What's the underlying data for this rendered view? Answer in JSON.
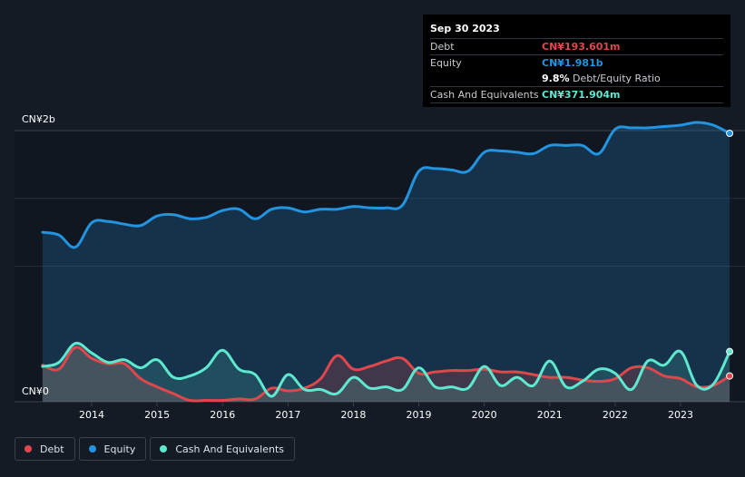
{
  "tooltip": {
    "date": "Sep 30 2023",
    "debt_label": "Debt",
    "debt_value": "CN¥193.601m",
    "equity_label": "Equity",
    "equity_value": "CN¥1.981b",
    "ratio_value": "9.8%",
    "ratio_label": "Debt/Equity Ratio",
    "cash_label": "Cash And Equivalents",
    "cash_value": "CN¥371.904m"
  },
  "legend": {
    "debt": "Debt",
    "equity": "Equity",
    "cash": "Cash And Equivalents"
  },
  "colors": {
    "debt": "#e0474c",
    "equity": "#2394df",
    "cash": "#5ee8cf",
    "background": "#151b25"
  },
  "chart_data": {
    "type": "line",
    "title": "",
    "xlabel": "",
    "ylabel": "",
    "ylim": [
      0,
      2.0
    ],
    "y_unit": "CN¥ billions",
    "y_tick_labels": [
      "CN¥0",
      "CN¥2b"
    ],
    "x_tick_labels": [
      "2014",
      "2015",
      "2016",
      "2017",
      "2018",
      "2019",
      "2020",
      "2021",
      "2022",
      "2023"
    ],
    "x_range": [
      2013.25,
      2023.75
    ],
    "grid": true,
    "legend_placement": "bottom-left",
    "series": [
      {
        "name": "Equity",
        "x": [
          2013.25,
          2013.5,
          2013.75,
          2014.0,
          2014.25,
          2014.5,
          2014.75,
          2015.0,
          2015.25,
          2015.5,
          2015.75,
          2016.0,
          2016.25,
          2016.5,
          2016.75,
          2017.0,
          2017.25,
          2017.5,
          2017.75,
          2018.0,
          2018.25,
          2018.5,
          2018.75,
          2019.0,
          2019.25,
          2019.5,
          2019.75,
          2020.0,
          2020.25,
          2020.5,
          2020.75,
          2021.0,
          2021.25,
          2021.5,
          2021.75,
          2022.0,
          2022.25,
          2022.5,
          2022.75,
          2023.0,
          2023.25,
          2023.5,
          2023.75
        ],
        "values": [
          1.25,
          1.23,
          1.14,
          1.32,
          1.33,
          1.31,
          1.3,
          1.37,
          1.38,
          1.35,
          1.36,
          1.41,
          1.42,
          1.35,
          1.42,
          1.43,
          1.4,
          1.42,
          1.42,
          1.44,
          1.43,
          1.43,
          1.45,
          1.7,
          1.72,
          1.71,
          1.7,
          1.84,
          1.85,
          1.84,
          1.83,
          1.89,
          1.89,
          1.89,
          1.83,
          2.01,
          2.02,
          2.02,
          2.03,
          2.04,
          2.06,
          2.04,
          1.98
        ]
      },
      {
        "name": "Debt",
        "x": [
          2013.25,
          2013.5,
          2013.75,
          2014.0,
          2014.25,
          2014.5,
          2014.75,
          2015.0,
          2015.25,
          2015.5,
          2015.75,
          2016.0,
          2016.25,
          2016.5,
          2016.75,
          2017.0,
          2017.25,
          2017.5,
          2017.75,
          2018.0,
          2018.25,
          2018.5,
          2018.75,
          2019.0,
          2019.25,
          2019.5,
          2019.75,
          2020.0,
          2020.25,
          2020.5,
          2020.75,
          2021.0,
          2021.25,
          2021.5,
          2021.75,
          2022.0,
          2022.25,
          2022.5,
          2022.75,
          2023.0,
          2023.25,
          2023.5,
          2023.75
        ],
        "values": [
          0.27,
          0.24,
          0.4,
          0.32,
          0.28,
          0.28,
          0.17,
          0.11,
          0.06,
          0.01,
          0.01,
          0.01,
          0.02,
          0.02,
          0.1,
          0.08,
          0.1,
          0.17,
          0.34,
          0.24,
          0.26,
          0.3,
          0.32,
          0.21,
          0.22,
          0.23,
          0.23,
          0.24,
          0.22,
          0.22,
          0.2,
          0.18,
          0.18,
          0.16,
          0.15,
          0.17,
          0.25,
          0.25,
          0.19,
          0.17,
          0.11,
          0.12,
          0.19
        ]
      },
      {
        "name": "Cash And Equivalents",
        "x": [
          2013.25,
          2013.5,
          2013.75,
          2014.0,
          2014.25,
          2014.5,
          2014.75,
          2015.0,
          2015.25,
          2015.5,
          2015.75,
          2016.0,
          2016.25,
          2016.5,
          2016.75,
          2017.0,
          2017.25,
          2017.5,
          2017.75,
          2018.0,
          2018.25,
          2018.5,
          2018.75,
          2019.0,
          2019.25,
          2019.5,
          2019.75,
          2020.0,
          2020.25,
          2020.5,
          2020.75,
          2021.0,
          2021.25,
          2021.5,
          2021.75,
          2022.0,
          2022.25,
          2022.5,
          2022.75,
          2023.0,
          2023.25,
          2023.5,
          2023.75
        ],
        "values": [
          0.26,
          0.29,
          0.43,
          0.36,
          0.29,
          0.31,
          0.25,
          0.31,
          0.18,
          0.19,
          0.25,
          0.38,
          0.24,
          0.2,
          0.04,
          0.2,
          0.09,
          0.09,
          0.06,
          0.18,
          0.1,
          0.11,
          0.09,
          0.25,
          0.11,
          0.11,
          0.1,
          0.26,
          0.12,
          0.18,
          0.12,
          0.3,
          0.11,
          0.15,
          0.24,
          0.21,
          0.09,
          0.3,
          0.27,
          0.37,
          0.12,
          0.13,
          0.37
        ]
      }
    ]
  }
}
